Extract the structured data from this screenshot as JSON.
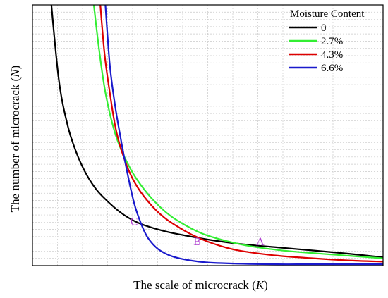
{
  "chart_data": {
    "type": "line",
    "title": "",
    "xlabel": "The scale of microcrack (K)",
    "ylabel": "The number of microcrack (N)",
    "xlabel_parts": {
      "prefix": "The scale of microcrack (",
      "symbol": "K",
      "suffix": ")"
    },
    "ylabel_parts": {
      "prefix": "The number of microcrack (",
      "symbol": "N",
      "suffix": ")"
    },
    "xlim": [
      0,
      10
    ],
    "ylim": [
      0,
      10
    ],
    "grid": true,
    "ticks_labeled": false,
    "legend": {
      "title": "Moisture Content",
      "position": "top-right"
    },
    "series": [
      {
        "name": "0",
        "color": "#000000",
        "x": [
          0.5,
          0.75,
          1,
          1.25,
          1.5,
          1.75,
          2,
          2.5,
          3,
          3.5,
          4,
          5,
          6,
          7,
          8,
          9,
          10
        ],
        "y": [
          10.6,
          7.15,
          5.4,
          4.35,
          3.6,
          3.05,
          2.65,
          2.05,
          1.65,
          1.42,
          1.25,
          1.0,
          0.82,
          0.7,
          0.58,
          0.46,
          0.32
        ]
      },
      {
        "name": "2.7%",
        "color": "#33ee33",
        "x": [
          1.7,
          1.9,
          2.1,
          2.4,
          2.8,
          3.2,
          3.6,
          4,
          4.5,
          5,
          6,
          7,
          8,
          9,
          10
        ],
        "y": [
          10.6,
          8.3,
          6.5,
          4.9,
          3.7,
          2.9,
          2.3,
          1.85,
          1.45,
          1.15,
          0.8,
          0.6,
          0.48,
          0.38,
          0.28
        ]
      },
      {
        "name": "4.3%",
        "color": "#dd0000",
        "x": [
          1.9,
          2.05,
          2.2,
          2.4,
          2.7,
          3,
          3.4,
          3.8,
          4.2,
          4.6,
          5,
          5.5,
          6,
          7,
          8,
          9,
          10
        ],
        "y": [
          10.6,
          8.2,
          6.7,
          5.1,
          3.8,
          3.0,
          2.3,
          1.8,
          1.45,
          1.15,
          0.92,
          0.7,
          0.55,
          0.38,
          0.28,
          0.2,
          0.15
        ]
      },
      {
        "name": "6.6%",
        "color": "#1a1acc",
        "x": [
          2.05,
          2.2,
          2.35,
          2.5,
          2.7,
          2.9,
          3.1,
          3.3,
          3.6,
          4,
          4.5,
          5,
          6,
          7,
          8,
          10
        ],
        "y": [
          10.6,
          7.8,
          6.2,
          5.0,
          3.6,
          2.4,
          1.6,
          1.05,
          0.62,
          0.35,
          0.2,
          0.12,
          0.07,
          0.05,
          0.05,
          0.05
        ]
      }
    ],
    "annotations": [
      {
        "text": "A",
        "x": 6.5,
        "y": 0.78
      },
      {
        "text": "B",
        "x": 4.7,
        "y": 0.78
      },
      {
        "text": "C",
        "x": 2.9,
        "y": 1.55
      }
    ]
  }
}
